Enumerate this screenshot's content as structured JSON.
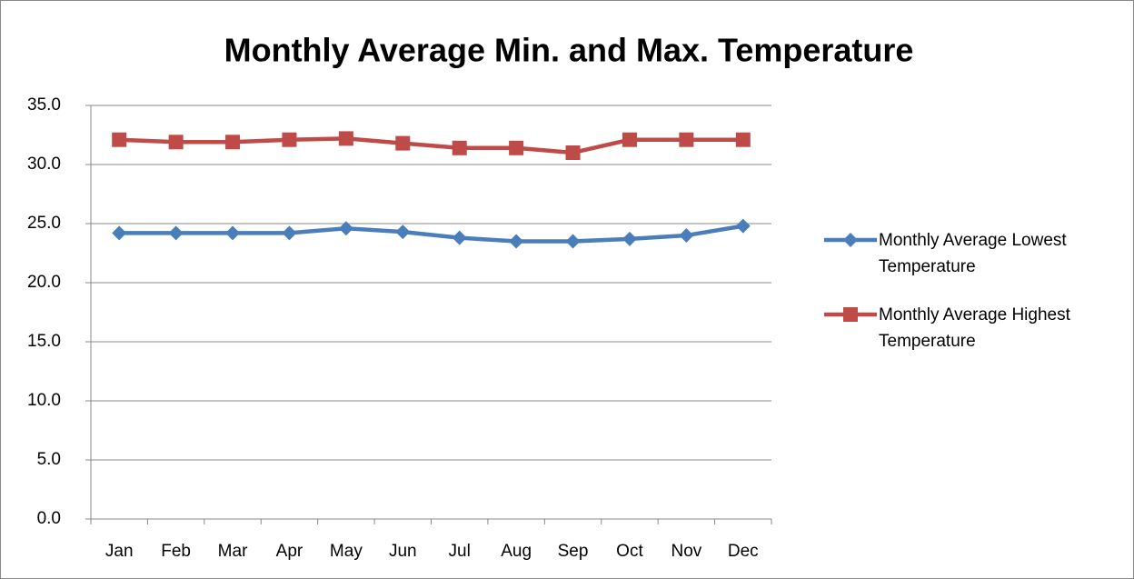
{
  "chart_data": {
    "type": "line",
    "title": "Monthly Average Min. and Max.  Temperature",
    "categories": [
      "Jan",
      "Feb",
      "Mar",
      "Apr",
      "May",
      "Jun",
      "Jul",
      "Aug",
      "Sep",
      "Oct",
      "Nov",
      "Dec"
    ],
    "series": [
      {
        "name": "Monthly Average Lowest Temperature",
        "color": "#4a7ebb",
        "marker": "diamond",
        "values": [
          24.2,
          24.2,
          24.2,
          24.2,
          24.6,
          24.3,
          23.8,
          23.5,
          23.5,
          23.7,
          24.0,
          24.8
        ]
      },
      {
        "name": "Monthly Average Highest Temperature",
        "color": "#be4b48",
        "marker": "square",
        "values": [
          32.1,
          31.9,
          31.9,
          32.1,
          32.2,
          31.8,
          31.4,
          31.4,
          31.0,
          32.1,
          32.1,
          32.1
        ]
      }
    ],
    "ylim": [
      0,
      35
    ],
    "yticks": [
      {
        "value": 0,
        "label": "0.0"
      },
      {
        "value": 5,
        "label": "5.0"
      },
      {
        "value": 10,
        "label": "10.0"
      },
      {
        "value": 15,
        "label": "15.0"
      },
      {
        "value": 20,
        "label": "20.0"
      },
      {
        "value": 25,
        "label": "25.0"
      },
      {
        "value": 30,
        "label": "30.0"
      },
      {
        "value": 35,
        "label": "35.0"
      }
    ],
    "grid": true,
    "legend": "right"
  }
}
